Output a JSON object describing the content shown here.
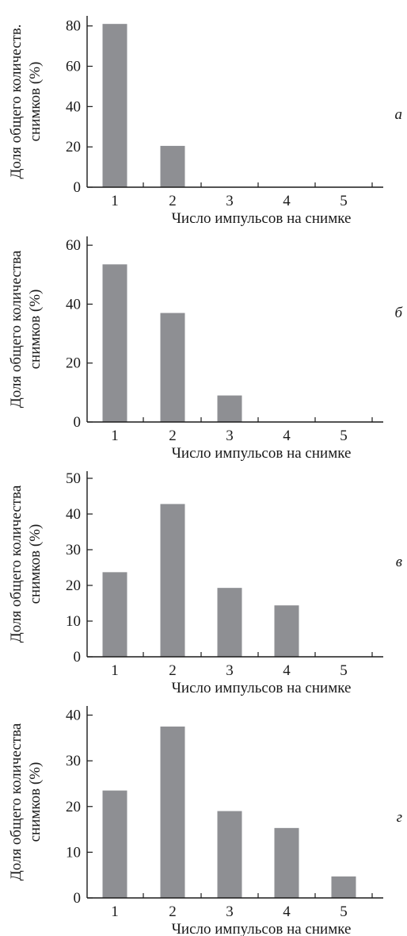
{
  "chart_data": [
    {
      "type": "bar",
      "panel_label": "а",
      "categories": [
        "1",
        "2",
        "3",
        "4",
        "5"
      ],
      "values": [
        81,
        20.5,
        0,
        0,
        0
      ],
      "xlabel": "Число импульсов на снимке",
      "ylabel_lines": [
        "Доля общего количеств.",
        "снимков (%)"
      ],
      "ylim": [
        0,
        85
      ],
      "yticks": [
        0,
        20,
        40,
        60,
        80
      ],
      "grid": false,
      "bar_color": "#8e8f93"
    },
    {
      "type": "bar",
      "panel_label": "б",
      "categories": [
        "1",
        "2",
        "3",
        "4",
        "5"
      ],
      "values": [
        53.5,
        37,
        9,
        0,
        0
      ],
      "xlabel": "Число импульсов на снимке",
      "ylabel_lines": [
        "Доля общего количества",
        "снимков (%)"
      ],
      "ylim": [
        0,
        63
      ],
      "yticks": [
        0,
        20,
        40,
        60
      ],
      "grid": false,
      "bar_color": "#8e8f93"
    },
    {
      "type": "bar",
      "panel_label": "в",
      "categories": [
        "1",
        "2",
        "3",
        "4",
        "5"
      ],
      "values": [
        23.7,
        42.8,
        19.3,
        14.4,
        0
      ],
      "xlabel": "Число импульсов на снимке",
      "ylabel_lines": [
        "Доля общего количества",
        "снимков (%)"
      ],
      "ylim": [
        0,
        52
      ],
      "yticks": [
        0,
        10,
        20,
        30,
        40,
        50
      ],
      "grid": false,
      "bar_color": "#8e8f93"
    },
    {
      "type": "bar",
      "panel_label": "г",
      "categories": [
        "1",
        "2",
        "3",
        "4",
        "5"
      ],
      "values": [
        23.5,
        37.5,
        19,
        15.3,
        4.7
      ],
      "xlabel": "Число импульсов на снимке",
      "ylabel_lines": [
        "Доля общего количества",
        "снимков (%)"
      ],
      "ylim": [
        0,
        42
      ],
      "yticks": [
        0,
        10,
        20,
        30,
        40
      ],
      "grid": false,
      "bar_color": "#8e8f93"
    }
  ]
}
